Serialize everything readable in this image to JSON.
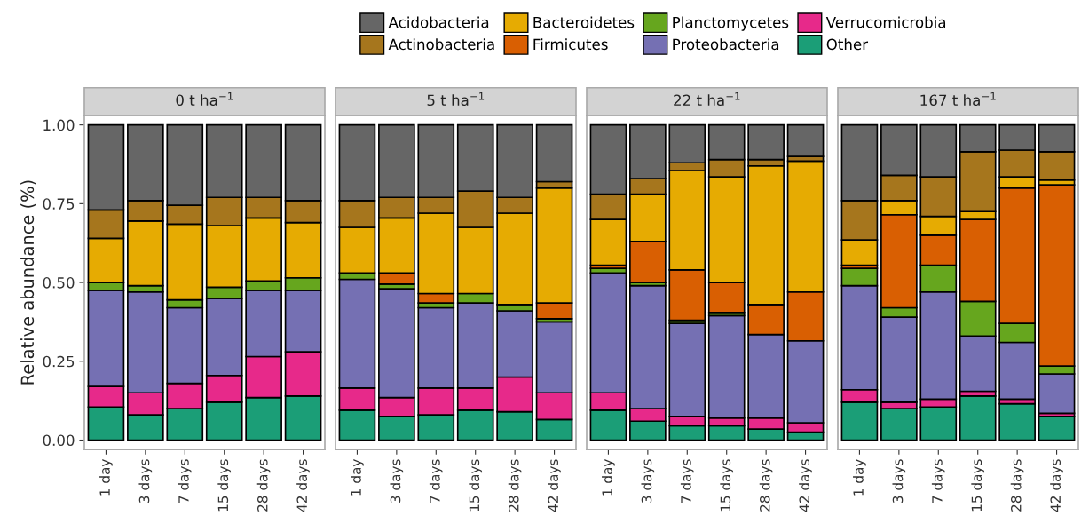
{
  "chart_data": [
    {
      "type": "bar",
      "stacked": true,
      "title": "0 t ha$^{−1}$",
      "ylabel": "Relative abundance (%)",
      "legend": "top",
      "categories": [
        "1 day",
        "3 days",
        "7 days",
        "15 days",
        "28 days",
        "42 days"
      ],
      "ylim": [
        -0.03,
        1.03
      ],
      "yticks": [
        {
          "value": 0,
          "label": "0.00"
        },
        {
          "value": 0.25,
          "label": "0.25"
        },
        {
          "value": 0.5,
          "label": "0.50"
        },
        {
          "value": 0.75,
          "label": "0.75"
        },
        {
          "value": 1,
          "label": "1.00"
        }
      ],
      "series": [
        {
          "name": "Other",
          "color": "#1b9e77",
          "values": [
            0.105,
            0.08,
            0.1,
            0.12,
            0.135,
            0.14
          ]
        },
        {
          "name": "Verrucomicrobia",
          "color": "#e7298a",
          "values": [
            0.065,
            0.07,
            0.08,
            0.085,
            0.13,
            0.14
          ]
        },
        {
          "name": "Proteobacteria",
          "color": "#7570b3",
          "values": [
            0.305,
            0.32,
            0.24,
            0.245,
            0.21,
            0.195
          ]
        },
        {
          "name": "Planctomycetes",
          "color": "#66a61e",
          "values": [
            0.025,
            0.02,
            0.025,
            0.035,
            0.03,
            0.04
          ]
        },
        {
          "name": "Firmicutes",
          "color": "#d95f02",
          "values": [
            null,
            null,
            null,
            null,
            null,
            null
          ]
        },
        {
          "name": "Bacteroidetes",
          "color": "#e6ab02",
          "values": [
            0.14,
            0.205,
            0.24,
            0.195,
            0.2,
            0.175
          ]
        },
        {
          "name": "Actinobacteria",
          "color": "#a6761d",
          "values": [
            0.09,
            0.065,
            0.06,
            0.09,
            0.065,
            0.07
          ]
        },
        {
          "name": "Acidobacteria",
          "color": "#666666",
          "values": [
            0.27,
            0.24,
            0.255,
            0.23,
            0.23,
            0.24
          ]
        }
      ]
    },
    {
      "type": "bar",
      "stacked": true,
      "title": "5 t ha$^{−1}$",
      "tick_labels": "x",
      "categories": [
        "1 day",
        "3 days",
        "7 days",
        "15 days",
        "28 days",
        "42 days"
      ],
      "ylim": [
        -0.03,
        1.03
      ],
      "series": [
        {
          "color": "#1b9e77",
          "values": [
            0.095,
            0.075,
            0.08,
            0.095,
            0.09,
            0.065
          ]
        },
        {
          "color": "#e7298a",
          "values": [
            0.07,
            0.06,
            0.085,
            0.07,
            0.11,
            0.085
          ]
        },
        {
          "color": "#7570b3",
          "values": [
            0.345,
            0.345,
            0.255,
            0.27,
            0.21,
            0.225
          ]
        },
        {
          "color": "#66a61e",
          "values": [
            0.02,
            0.015,
            0.015,
            0.03,
            0.02,
            0.01
          ]
        },
        {
          "color": "#d95f02",
          "values": [
            null,
            0.035,
            0.03,
            null,
            null,
            0.05
          ]
        },
        {
          "color": "#e6ab02",
          "values": [
            0.145,
            0.175,
            0.255,
            0.21,
            0.29,
            0.365
          ]
        },
        {
          "color": "#a6761d",
          "values": [
            0.085,
            0.065,
            0.05,
            0.115,
            0.05,
            0.02
          ]
        },
        {
          "color": "#666666",
          "values": [
            0.24,
            0.23,
            0.23,
            0.21,
            0.23,
            0.18
          ]
        }
      ]
    },
    {
      "type": "bar",
      "stacked": true,
      "title": "22 t ha$^{−1}$",
      "tick_labels": "x",
      "categories": [
        "1 day",
        "3 days",
        "7 days",
        "15 days",
        "28 days",
        "42 days"
      ],
      "ylim": [
        -0.03,
        1.03
      ],
      "series": [
        {
          "color": "#1b9e77",
          "values": [
            0.095,
            0.06,
            0.045,
            0.045,
            0.035,
            0.025
          ]
        },
        {
          "color": "#e7298a",
          "values": [
            0.055,
            0.04,
            0.03,
            0.025,
            0.035,
            0.03
          ]
        },
        {
          "color": "#7570b3",
          "values": [
            0.38,
            0.39,
            0.295,
            0.325,
            0.265,
            0.26
          ]
        },
        {
          "color": "#66a61e",
          "values": [
            0.015,
            0.01,
            0.01,
            0.01,
            null,
            null
          ]
        },
        {
          "color": "#d95f02",
          "values": [
            0.01,
            0.13,
            0.16,
            0.095,
            0.095,
            0.155
          ]
        },
        {
          "color": "#e6ab02",
          "values": [
            0.145,
            0.15,
            0.315,
            0.335,
            0.44,
            0.415
          ]
        },
        {
          "color": "#a6761d",
          "values": [
            0.08,
            0.05,
            0.025,
            0.055,
            0.02,
            0.015
          ]
        },
        {
          "color": "#666666",
          "values": [
            0.22,
            0.17,
            0.12,
            0.11,
            0.11,
            0.1
          ]
        }
      ]
    },
    {
      "type": "bar",
      "stacked": true,
      "title": "167 t ha$^{−1}$",
      "tick_labels": "x",
      "categories": [
        "1 day",
        "3 days",
        "7 days",
        "15 days",
        "28 days",
        "42 days"
      ],
      "ylim": [
        -0.03,
        1.03
      ],
      "series": [
        {
          "color": "#1b9e77",
          "values": [
            0.12,
            0.1,
            0.105,
            0.14,
            0.115,
            0.075
          ]
        },
        {
          "color": "#e7298a",
          "values": [
            0.04,
            0.02,
            0.025,
            0.015,
            0.015,
            0.01
          ]
        },
        {
          "color": "#7570b3",
          "values": [
            0.33,
            0.27,
            0.34,
            0.175,
            0.18,
            0.125
          ]
        },
        {
          "color": "#66a61e",
          "values": [
            0.055,
            0.03,
            0.085,
            0.11,
            0.06,
            0.025
          ]
        },
        {
          "color": "#d95f02",
          "values": [
            0.01,
            0.295,
            0.095,
            0.26,
            0.43,
            0.575
          ]
        },
        {
          "color": "#e6ab02",
          "values": [
            0.08,
            0.045,
            0.06,
            0.025,
            0.035,
            0.015
          ]
        },
        {
          "color": "#a6761d",
          "values": [
            0.125,
            0.08,
            0.125,
            0.19,
            0.085,
            0.09
          ]
        },
        {
          "color": "#666666",
          "values": [
            0.24,
            0.16,
            0.165,
            0.085,
            0.08,
            0.085
          ]
        }
      ]
    }
  ]
}
